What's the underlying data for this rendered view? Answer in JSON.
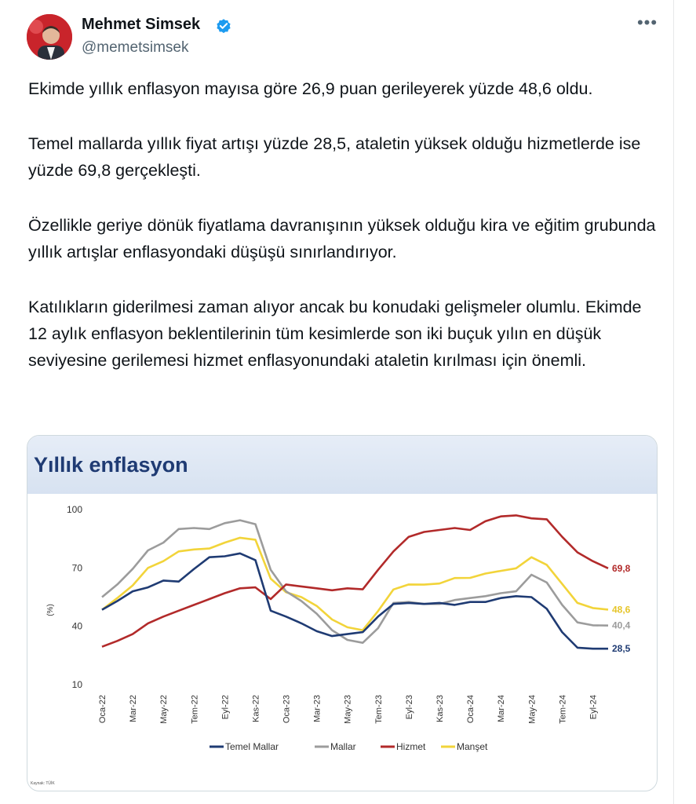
{
  "tweet": {
    "author_name": "Mehmet Simsek",
    "handle": "@memetsimsek",
    "avatar_icon": "avatar-photo",
    "verified_icon": "verified-badge-icon",
    "more_icon": "more-options-icon",
    "paragraphs": [
      "Ekimde yıllık enflasyon mayısa göre 26,9 puan gerileyerek yüzde 48,6 oldu.",
      "Temel mallarda yıllık fiyat artışı yüzde 28,5, ataletin yüksek olduğu hizmetlerde ise yüzde 69,8 gerçekleşti.",
      "Özellikle geriye dönük fiyatlama davranışının yüksek olduğu kira ve eğitim grubunda yıllık artışlar enflasyondaki düşüşü sınırlandırıyor.",
      "Katılıkların giderilmesi zaman alıyor ancak bu konudaki gelişmeler olumlu. Ekimde 12 aylık enflasyon beklentilerinin tüm kesimlerde son iki buçuk yılın en düşük seviyesine gerilemesi hizmet enflasyonundaki ataletin kırılması için önemli."
    ]
  },
  "colors": {
    "verified": "#1d9bf0",
    "card_title": "#1f3b73"
  },
  "chart_data": {
    "type": "line",
    "title": "Yıllık enflasyon",
    "ylabel": "(%)",
    "xlabel": "",
    "ylim": [
      10,
      100
    ],
    "yticks": [
      10,
      40,
      70,
      100
    ],
    "grid": false,
    "legend_position": "bottom",
    "source_note": "Kaynak: TÜİK",
    "tick_labels": [
      "Oca-22",
      "Mar-22",
      "May-22",
      "Tem-22",
      "Eyl-22",
      "Kas-22",
      "Oca-23",
      "Mar-23",
      "May-23",
      "Tem-23",
      "Eyl-23",
      "Kas-23",
      "Oca-24",
      "Mar-24",
      "May-24",
      "Tem-24",
      "Eyl-24"
    ],
    "x": [
      "Oca-22",
      "Şub-22",
      "Mar-22",
      "Nis-22",
      "May-22",
      "Haz-22",
      "Tem-22",
      "Ağu-22",
      "Eyl-22",
      "Eki-22",
      "Kas-22",
      "Ara-22",
      "Oca-23",
      "Şub-23",
      "Mar-23",
      "Nis-23",
      "May-23",
      "Haz-23",
      "Tem-23",
      "Ağu-23",
      "Eyl-23",
      "Eki-23",
      "Kas-23",
      "Ara-23",
      "Oca-24",
      "Şub-24",
      "Mar-24",
      "Nis-24",
      "May-24",
      "Haz-24",
      "Tem-24",
      "Ağu-24",
      "Eyl-24",
      "Eki-24"
    ],
    "series": [
      {
        "name": "Temel Mallar",
        "color": "#1f3b73",
        "end_label": "28,5",
        "values": [
          48.5,
          53,
          58,
          60,
          63.5,
          63,
          69.5,
          75.5,
          76,
          77.5,
          74,
          48,
          45,
          41.5,
          37.5,
          35,
          36,
          37,
          45,
          51.5,
          52,
          51.5,
          52,
          51,
          52.5,
          52.5,
          54.5,
          55.5,
          55,
          49,
          37,
          29,
          28.5,
          28.5
        ]
      },
      {
        "name": "Mallar",
        "color": "#9c9c9c",
        "end_label": "40,4",
        "values": [
          55,
          61.5,
          69.5,
          79,
          83,
          90,
          90.5,
          90,
          93,
          94.5,
          92.5,
          69,
          58,
          53,
          46.5,
          38,
          33,
          31.5,
          39,
          52,
          52.5,
          51.5,
          51.5,
          53.5,
          54.5,
          55.5,
          57,
          58,
          66.5,
          62.5,
          51,
          42,
          40.5,
          40.4
        ]
      },
      {
        "name": "Hizmet",
        "color": "#b22a2a",
        "end_label": "69,8",
        "values": [
          29.5,
          32.5,
          36,
          41.5,
          45,
          48,
          51,
          54,
          57,
          59.5,
          60,
          54,
          61.5,
          60.5,
          59.5,
          58.5,
          59.5,
          59,
          69,
          78.5,
          86,
          88.5,
          89.5,
          90.5,
          89.5,
          94,
          96.5,
          97,
          95.5,
          95,
          86,
          78,
          73.5,
          69.8
        ]
      },
      {
        "name": "Manşet",
        "color": "#f2d43a",
        "end_label": "48,6",
        "values": [
          48.5,
          54.5,
          61,
          70,
          73.5,
          78.5,
          79.5,
          80,
          83,
          85.5,
          84.5,
          64.5,
          57.5,
          55,
          50.5,
          43.5,
          39.5,
          38,
          47.8,
          58.9,
          61.5,
          61.4,
          62,
          64.8,
          64.9,
          67.1,
          68.5,
          69.8,
          75.5,
          71.6,
          61.8,
          52,
          49.4,
          48.6
        ]
      }
    ]
  }
}
